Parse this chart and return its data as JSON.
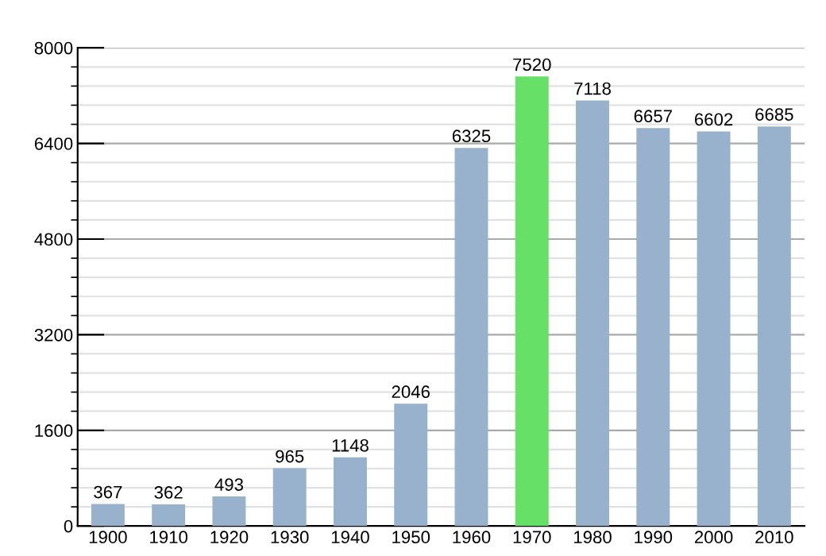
{
  "chart_data": {
    "type": "bar",
    "categories": [
      "1900",
      "1910",
      "1920",
      "1930",
      "1940",
      "1950",
      "1960",
      "1970",
      "1980",
      "1990",
      "2000",
      "2010"
    ],
    "values": [
      367,
      362,
      493,
      965,
      1148,
      2046,
      6325,
      7520,
      7118,
      6657,
      6602,
      6685
    ],
    "colors": [
      "#98b1cc",
      "#98b1cc",
      "#98b1cc",
      "#98b1cc",
      "#98b1cc",
      "#98b1cc",
      "#98b1cc",
      "#66e066",
      "#98b1cc",
      "#98b1cc",
      "#98b1cc",
      "#98b1cc"
    ],
    "ylim": [
      0,
      8000
    ],
    "yticks": [
      0,
      1600,
      3200,
      4800,
      6400,
      8000
    ],
    "grid": "y",
    "data_labels": true
  }
}
